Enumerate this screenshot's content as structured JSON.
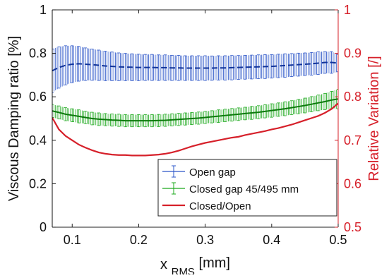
{
  "colors": {
    "open": "#2a54c8",
    "closed": "#1aa81a",
    "ratio": "#d6202a",
    "left_axis": "#111111",
    "right_axis": "#d6202a"
  },
  "chart_data": {
    "type": "line",
    "xlabel_main": "x",
    "xlabel_sub": "RMS",
    "xlabel_unit": "[mm]",
    "ylabel_left": "Viscous Damping ratio [%]",
    "ylabel_right": "Relative Variation [/]",
    "xlim": [
      0.07,
      0.5
    ],
    "ylim_left": [
      0,
      1
    ],
    "ylim_right": [
      0.5,
      1
    ],
    "x_ticks": [
      "0.1",
      "0.2",
      "0.3",
      "0.4",
      "0.5"
    ],
    "y_left_ticks": [
      "0",
      "0.2",
      "0.4",
      "0.6",
      "0.8",
      "1"
    ],
    "y_right_ticks": [
      "0.5",
      "0.6",
      "0.7",
      "0.8",
      "0.9",
      "1"
    ],
    "grid": false,
    "legend_position": "bottom-right",
    "x": [
      0.07,
      0.08,
      0.09,
      0.1,
      0.11,
      0.12,
      0.13,
      0.14,
      0.15,
      0.16,
      0.17,
      0.18,
      0.19,
      0.2,
      0.21,
      0.22,
      0.23,
      0.24,
      0.25,
      0.26,
      0.27,
      0.28,
      0.29,
      0.3,
      0.31,
      0.32,
      0.33,
      0.34,
      0.35,
      0.36,
      0.37,
      0.38,
      0.39,
      0.4,
      0.41,
      0.42,
      0.43,
      0.44,
      0.45,
      0.46,
      0.47,
      0.48,
      0.49,
      0.5
    ],
    "series": [
      {
        "name": "Open gap",
        "axis": "left",
        "style": "dashed-errorbar",
        "values": [
          0.72,
          0.735,
          0.745,
          0.75,
          0.752,
          0.75,
          0.748,
          0.745,
          0.742,
          0.74,
          0.738,
          0.737,
          0.736,
          0.735,
          0.735,
          0.735,
          0.734,
          0.734,
          0.733,
          0.733,
          0.732,
          0.732,
          0.732,
          0.732,
          0.732,
          0.733,
          0.733,
          0.734,
          0.735,
          0.736,
          0.737,
          0.738,
          0.739,
          0.74,
          0.742,
          0.744,
          0.746,
          0.748,
          0.75,
          0.752,
          0.755,
          0.758,
          0.758,
          0.755
        ],
        "errors": [
          0.1,
          0.095,
          0.09,
          0.085,
          0.08,
          0.075,
          0.072,
          0.07,
          0.068,
          0.066,
          0.064,
          0.063,
          0.062,
          0.061,
          0.06,
          0.06,
          0.059,
          0.059,
          0.058,
          0.058,
          0.057,
          0.057,
          0.057,
          0.057,
          0.056,
          0.056,
          0.056,
          0.056,
          0.055,
          0.055,
          0.055,
          0.055,
          0.055,
          0.054,
          0.054,
          0.054,
          0.053,
          0.053,
          0.052,
          0.052,
          0.052,
          0.05,
          0.05,
          0.04
        ]
      },
      {
        "name": "Closed gap 45/495 mm",
        "axis": "left",
        "style": "solid-errorbar",
        "values": [
          0.535,
          0.528,
          0.52,
          0.515,
          0.51,
          0.505,
          0.5,
          0.497,
          0.495,
          0.493,
          0.492,
          0.49,
          0.49,
          0.49,
          0.49,
          0.49,
          0.491,
          0.492,
          0.494,
          0.496,
          0.498,
          0.5,
          0.502,
          0.505,
          0.508,
          0.511,
          0.514,
          0.517,
          0.52,
          0.523,
          0.526,
          0.529,
          0.533,
          0.537,
          0.541,
          0.545,
          0.55,
          0.555,
          0.56,
          0.566,
          0.572,
          0.578,
          0.585,
          0.59
        ],
        "errors": [
          0.03,
          0.03,
          0.03,
          0.03,
          0.03,
          0.029,
          0.029,
          0.029,
          0.028,
          0.028,
          0.028,
          0.028,
          0.028,
          0.028,
          0.028,
          0.028,
          0.028,
          0.028,
          0.028,
          0.028,
          0.028,
          0.028,
          0.028,
          0.028,
          0.028,
          0.029,
          0.029,
          0.029,
          0.029,
          0.029,
          0.03,
          0.03,
          0.03,
          0.031,
          0.031,
          0.032,
          0.032,
          0.033,
          0.034,
          0.035,
          0.036,
          0.037,
          0.04,
          0.045
        ]
      },
      {
        "name": "Closed/Open",
        "axis": "right",
        "style": "solid",
        "values": [
          0.752,
          0.725,
          0.71,
          0.7,
          0.69,
          0.683,
          0.677,
          0.672,
          0.669,
          0.667,
          0.666,
          0.666,
          0.665,
          0.665,
          0.665,
          0.666,
          0.667,
          0.669,
          0.672,
          0.676,
          0.681,
          0.686,
          0.69,
          0.694,
          0.697,
          0.7,
          0.703,
          0.706,
          0.708,
          0.712,
          0.715,
          0.718,
          0.721,
          0.725,
          0.728,
          0.732,
          0.736,
          0.741,
          0.746,
          0.751,
          0.756,
          0.763,
          0.772,
          0.785
        ]
      }
    ]
  }
}
